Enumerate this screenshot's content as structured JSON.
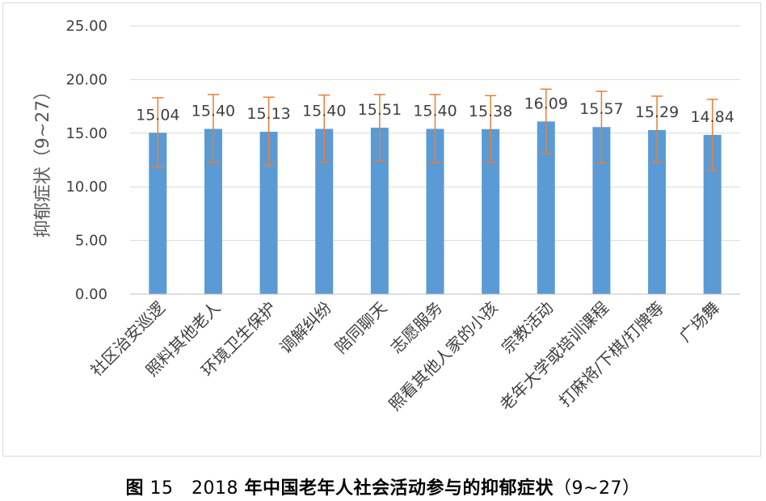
{
  "caption": {
    "label": "图",
    "number": "15",
    "year": "2018",
    "title": "年中国老年人社会活动参与的抑郁症状",
    "range": "（9~27）"
  },
  "chart_data": {
    "type": "bar",
    "title": "",
    "xlabel": "",
    "ylabel": "抑郁症状（9~27）",
    "ylim": [
      0,
      25
    ],
    "yticks": [
      "0.00",
      "5.00",
      "10.00",
      "15.00",
      "20.00",
      "25.00"
    ],
    "grid": true,
    "categories": [
      "社区治安巡逻",
      "照料其他老人",
      "环境卫生保护",
      "调解纠纷",
      "陪同聊天",
      "志愿服务",
      "照看其他人家的小孩",
      "宗教活动",
      "老年大学或培训课程",
      "打麻将/下棋/打牌等",
      "广场舞"
    ],
    "values": [
      15.04,
      15.4,
      15.13,
      15.4,
      15.51,
      15.4,
      15.38,
      16.09,
      15.57,
      15.29,
      14.84
    ],
    "data_labels": [
      "15.04",
      "15.40",
      "15.13",
      "15.40",
      "15.51",
      "15.40",
      "15.38",
      "16.09",
      "15.57",
      "15.29",
      "14.84"
    ],
    "error_upper": [
      18.3,
      18.6,
      18.35,
      18.55,
      18.6,
      18.6,
      18.5,
      19.1,
      18.9,
      18.45,
      18.15
    ],
    "error_lower": [
      11.85,
      12.3,
      12.0,
      12.3,
      12.45,
      12.25,
      12.3,
      13.1,
      12.2,
      12.3,
      11.55
    ],
    "colors": {
      "bar": "#5b9bd5",
      "error_bar": "#ed7d31",
      "grid": "#d9d9d9",
      "text": "#404040",
      "axis_title": "#595959"
    }
  }
}
